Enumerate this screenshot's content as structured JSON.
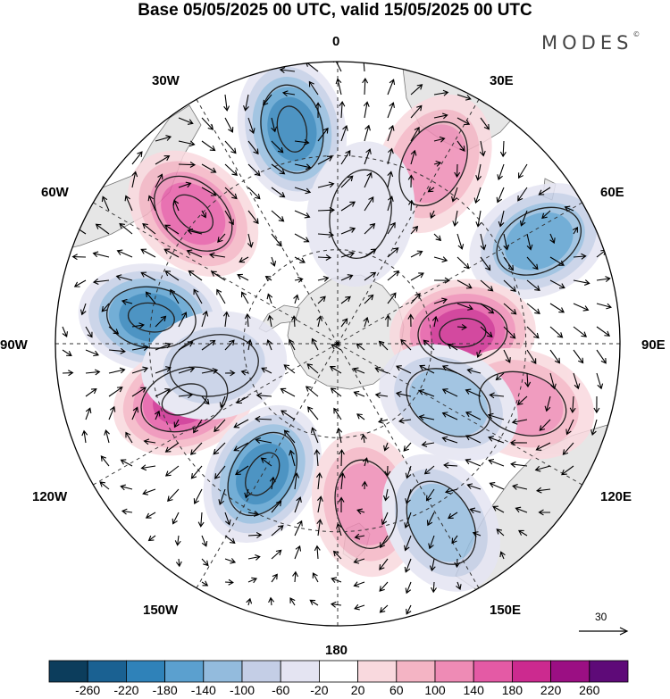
{
  "title": "Base 05/05/2025 00 UTC, valid 15/05/2025 00 UTC",
  "brand": "MODES",
  "brand_mark": "©",
  "longitude_labels": {
    "lon_0": "0",
    "lon_30e": "30E",
    "lon_60e": "60E",
    "lon_90e": "90E",
    "lon_120e": "120E",
    "lon_150e": "150E",
    "lon_180": "180",
    "lon_150w": "150W",
    "lon_120w": "120W",
    "lon_90w": "90W",
    "lon_60w": "60W",
    "lon_30w": "30W"
  },
  "reference_vector": {
    "label": "30"
  },
  "colorbar": {
    "colors": [
      "#0c3d5c",
      "#1a6192",
      "#2f82b9",
      "#5ba0cf",
      "#93bbdd",
      "#c4cee6",
      "#e4e4f2",
      "#ffffff",
      "#f9d9de",
      "#f4b4c4",
      "#ee8bb5",
      "#e45aa5",
      "#cc2a8f",
      "#9b0f83",
      "#5e0a78"
    ],
    "ticks": [
      "-260",
      "-220",
      "-180",
      "-140",
      "-100",
      "-60",
      "-20",
      "20",
      "60",
      "100",
      "140",
      "180",
      "220",
      "260"
    ]
  },
  "anomaly_centers": [
    {
      "lon_deg": -12,
      "colat_deg": 70,
      "value": -200
    },
    {
      "lon_deg": -48,
      "colat_deg": 62,
      "value": 160
    },
    {
      "lon_deg": -82,
      "colat_deg": 60,
      "value": -200
    },
    {
      "lon_deg": -110,
      "colat_deg": 52,
      "value": 180
    },
    {
      "lon_deg": -150,
      "colat_deg": 48,
      "value": -200
    },
    {
      "lon_deg": 170,
      "colat_deg": 52,
      "value": 110
    },
    {
      "lon_deg": 150,
      "colat_deg": 66,
      "value": -90
    },
    {
      "lon_deg": 28,
      "colat_deg": 65,
      "value": 110
    },
    {
      "lon_deg": 63,
      "colat_deg": 72,
      "value": -140
    },
    {
      "lon_deg": 85,
      "colat_deg": 40,
      "value": 170
    },
    {
      "lon_deg": 108,
      "colat_deg": 62,
      "value": 120
    },
    {
      "lon_deg": 118,
      "colat_deg": 40,
      "value": -90
    },
    {
      "lon_deg": 10,
      "colat_deg": 42,
      "value": -40
    },
    {
      "lon_deg": -100,
      "colat_deg": 40,
      "value": -60
    }
  ]
}
